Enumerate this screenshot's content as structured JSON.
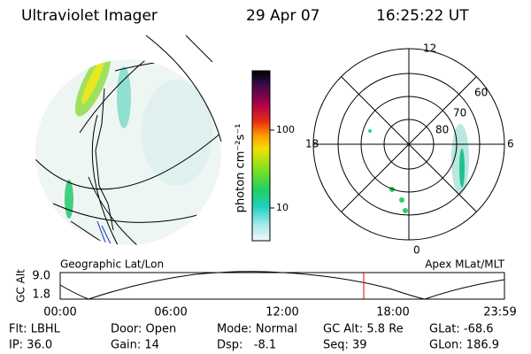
{
  "header": {
    "title": "Ultraviolet Imager",
    "date": "29 Apr 07",
    "time": "16:25:22 UT"
  },
  "colorbar": {
    "label": "photon cm⁻²s⁻¹",
    "ticks": [
      "100",
      "10"
    ]
  },
  "polar": {
    "hours": [
      "12",
      "18",
      "6",
      "0"
    ],
    "latitudes": [
      "60",
      "70",
      "80"
    ]
  },
  "orbit_plot": {
    "left_label": "Geographic Lat/Lon",
    "right_label": "Apex MLat/MLT",
    "y_label": "GC Alt",
    "yticks": [
      "9.0",
      "1.8"
    ],
    "xticks": [
      "00:00",
      "06:00",
      "12:00",
      "18:00",
      "23:59"
    ]
  },
  "info": [
    [
      "Flt: LBHL",
      "IP: 36.0"
    ],
    [
      "Door: Open",
      "Gain: 14"
    ],
    [
      "Mode: Normal",
      "Dsp:   -8.1"
    ],
    [
      "GC Alt: 5.8 Re",
      "Seq: 39"
    ],
    [
      "GLat: -68.6",
      "GLon: 186.9"
    ]
  ]
}
